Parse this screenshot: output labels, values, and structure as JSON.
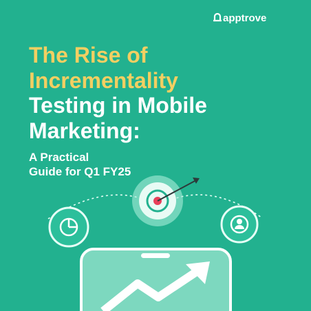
{
  "logo": "apptrove",
  "title": {
    "highlight_lines": [
      "The Rise of",
      "Incrementality"
    ],
    "lines": [
      "Testing in Mobile",
      "Marketing:"
    ]
  },
  "subtitle": {
    "lines": [
      "A Practical",
      "Guide for Q1 FY25"
    ]
  }
}
